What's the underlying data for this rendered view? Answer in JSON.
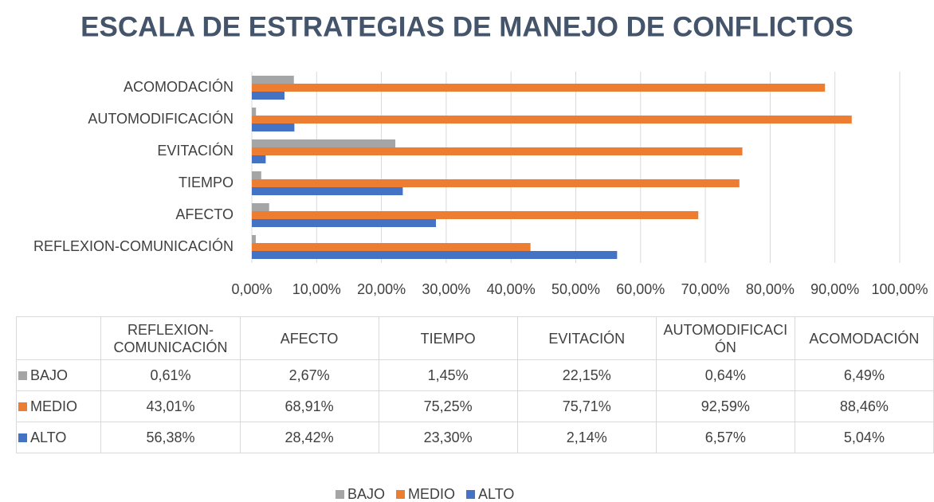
{
  "chart_data": {
    "type": "hbar",
    "title": "ESCALA DE ESTRATEGIAS DE MANEJO DE CONFLICTOS",
    "categories": [
      "REFLEXION-COMUNICACIÓN",
      "AFECTO",
      "TIEMPO",
      "EVITACIÓN",
      "AUTOMODIFICACIÓN",
      "ACOMODACIÓN"
    ],
    "series": [
      {
        "name": "BAJO",
        "color": "#a5a5a5",
        "values": [
          0.61,
          2.67,
          1.45,
          22.15,
          0.64,
          6.49
        ],
        "value_labels": [
          "0,61%",
          "2,67%",
          "1,45%",
          "22,15%",
          "0,64%",
          "6,49%"
        ]
      },
      {
        "name": "MEDIO",
        "color": "#ed7d31",
        "values": [
          43.01,
          68.91,
          75.25,
          75.71,
          92.59,
          88.46
        ],
        "value_labels": [
          "43,01%",
          "68,91%",
          "75,25%",
          "75,71%",
          "92,59%",
          "88,46%"
        ]
      },
      {
        "name": "ALTO",
        "color": "#4472c4",
        "values": [
          56.38,
          28.42,
          23.3,
          2.14,
          6.57,
          5.04
        ],
        "value_labels": [
          "56,38%",
          "28,42%",
          "23,30%",
          "2,14%",
          "6,57%",
          "5,04%"
        ]
      }
    ],
    "xlim": [
      0,
      100
    ],
    "xticks": [
      {
        "value": 0,
        "label": "0,00%"
      },
      {
        "value": 10,
        "label": "10,00%"
      },
      {
        "value": 20,
        "label": "20,00%"
      },
      {
        "value": 30,
        "label": "30,00%"
      },
      {
        "value": 40,
        "label": "40,00%"
      },
      {
        "value": 50,
        "label": "50,00%"
      },
      {
        "value": 60,
        "label": "60,00%"
      },
      {
        "value": 70,
        "label": "70,00%"
      },
      {
        "value": 80,
        "label": "80,00%"
      },
      {
        "value": 90,
        "label": "90,00%"
      },
      {
        "value": 100,
        "label": "100,00%"
      }
    ],
    "grid": true,
    "legend": "bottom"
  }
}
